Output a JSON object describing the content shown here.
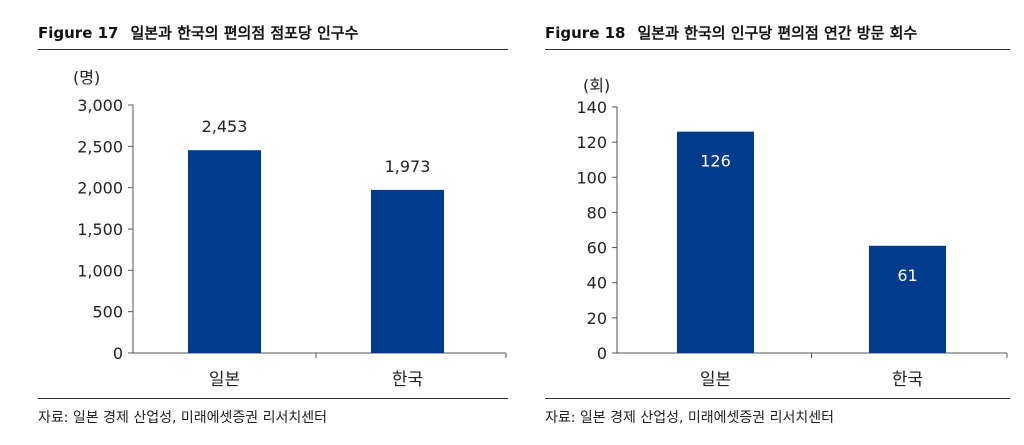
{
  "chart_data": [
    {
      "type": "bar",
      "figure_number": "Figure 17",
      "title": "일본과 한국의 편의점 점포당 인구수",
      "unit_label": "(명)",
      "categories": [
        "일본",
        "한국"
      ],
      "values": [
        2453,
        1973
      ],
      "value_labels": [
        "2,453",
        "1,973"
      ],
      "ylim": [
        0,
        3000
      ],
      "yticks": [
        0,
        500,
        1000,
        1500,
        2000,
        2500,
        3000
      ],
      "ytick_labels": [
        "0",
        "500",
        "1,000",
        "1,500",
        "2,000",
        "2,500",
        "3,000"
      ],
      "label_position": "above",
      "source": "자료: 일본 경제 산업성, 미래에셋증권 리서치센터",
      "bar_color": "#003B8E"
    },
    {
      "type": "bar",
      "figure_number": "Figure 18",
      "title": "일본과 한국의 인구당 편의점 연간 방문 회수",
      "unit_label": "(회)",
      "categories": [
        "일본",
        "한국"
      ],
      "values": [
        126,
        61
      ],
      "value_labels": [
        "126",
        "61"
      ],
      "ylim": [
        0,
        140
      ],
      "yticks": [
        0,
        20,
        40,
        60,
        80,
        100,
        120,
        140
      ],
      "ytick_labels": [
        "0",
        "20",
        "40",
        "60",
        "80",
        "100",
        "120",
        "140"
      ],
      "label_position": "inside",
      "source": "자료: 일본 경제 산업성, 미래에셋증권 리서치센터",
      "bar_color": "#003B8E"
    }
  ]
}
